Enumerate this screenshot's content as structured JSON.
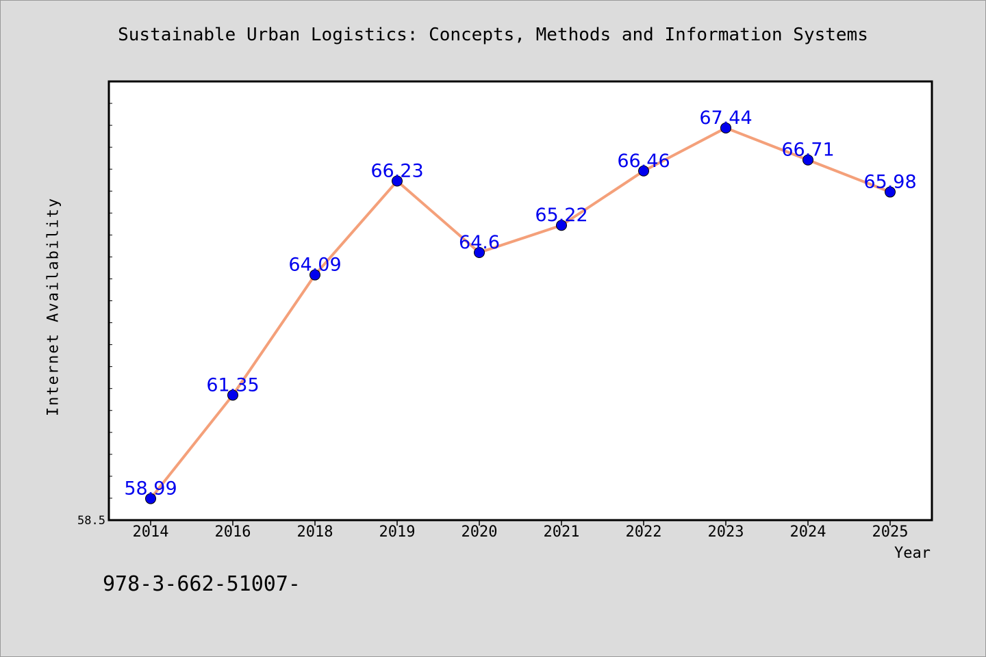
{
  "chart_data": {
    "type": "line",
    "title": "Sustainable Urban Logistics: Concepts, Methods and Information Systems",
    "xlabel": "Year",
    "ylabel": "Internet Availability",
    "categories": [
      "2014",
      "2016",
      "2018",
      "2019",
      "2020",
      "2021",
      "2022",
      "2023",
      "2024",
      "2025"
    ],
    "series": [
      {
        "values": [
          58.99,
          61.35,
          64.09,
          66.23,
          64.6,
          65.22,
          66.46,
          67.44,
          66.71,
          65.98
        ],
        "labels": [
          "58.99",
          "61.35",
          "64.09",
          "66.23",
          "64.6",
          "65.22",
          "66.46",
          "67.44",
          "66.71",
          "65.98"
        ]
      }
    ],
    "ylim": [
      58.5,
      68.5
    ],
    "y_tick_labels": [
      "58.5"
    ],
    "grid": false,
    "legend": "none",
    "colors": {
      "line": "#f4a07a",
      "marker": "#0000ee",
      "label": "#0000ee",
      "plot_bg": "#ffffff",
      "page_bg": "#dcdcdc"
    }
  },
  "footer": {
    "note": "978-3-662-51007-"
  }
}
